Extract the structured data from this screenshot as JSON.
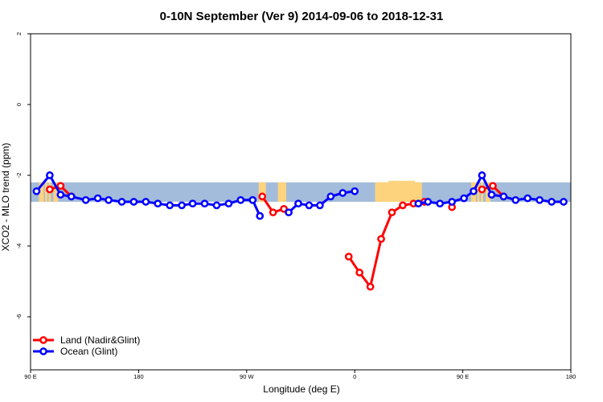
{
  "chart_data": {
    "type": "line",
    "title": "0-10N September (Ver 9)   2014-09-06 to 2018-12-31",
    "xlabel": "Longitude (deg E)",
    "ylabel": "XCO2 - MLO trend (ppm)",
    "xlim": [
      90,
      540
    ],
    "ylim": [
      -7.5,
      2.0
    ],
    "x_ticks": [
      {
        "value": 90,
        "label": "90 E"
      },
      {
        "value": 180,
        "label": "180"
      },
      {
        "value": 270,
        "label": "90 W"
      },
      {
        "value": 360,
        "label": "0"
      },
      {
        "value": 450,
        "label": "90 E"
      },
      {
        "value": 540,
        "label": "180"
      }
    ],
    "y_ticks": [
      {
        "value": 2,
        "label": "2"
      },
      {
        "value": 0,
        "label": "0"
      },
      {
        "value": -2,
        "label": "-2"
      },
      {
        "value": -4,
        "label": "-4"
      },
      {
        "value": -6,
        "label": "-6"
      }
    ],
    "background_map": {
      "lat_band_y": [
        -2.2,
        -2.75
      ],
      "ocean_color": "#a3bcdb",
      "land_color": "#fdd37d",
      "land_ranges": [
        [
          97,
          101
        ],
        [
          102,
          104
        ],
        [
          105,
          107
        ],
        [
          109,
          111
        ],
        [
          111,
          113
        ],
        [
          280,
          286
        ],
        [
          296,
          303
        ],
        [
          377,
          416
        ],
        [
          457,
          461
        ],
        [
          462,
          464
        ],
        [
          465,
          467
        ],
        [
          469,
          471
        ],
        [
          471,
          473
        ]
      ]
    },
    "legend_position": "bottom-left",
    "series": [
      {
        "name": "Land (Nadir&Glint)",
        "color": "#ff0000",
        "segments": [
          {
            "x": [
              106,
              115,
              124
            ],
            "y": [
              -2.4,
              -2.3,
              -2.6
            ]
          },
          {
            "x": [
              283,
              292,
              301
            ],
            "y": [
              -2.6,
              -3.05,
              -2.95
            ]
          },
          {
            "x": [
              355,
              364,
              373,
              382,
              391,
              400,
              409,
              418
            ],
            "y": [
              -4.3,
              -4.75,
              -5.15,
              -3.8,
              -3.05,
              -2.85,
              -2.8,
              -2.75
            ]
          },
          {
            "x": [
              466,
              475,
              484
            ],
            "y": [
              -2.4,
              -2.3,
              -2.6
            ]
          },
          {
            "x": [
              441
            ],
            "y": [
              -2.9
            ]
          }
        ]
      },
      {
        "name": "Ocean (Glint)",
        "color": "#0000ff",
        "segments": [
          {
            "x": [
              95,
              106,
              115,
              124,
              136,
              146,
              155,
              166,
              176,
              186,
              196,
              206,
              216,
              225,
              235,
              245,
              255,
              265,
              275
            ],
            "y": [
              -2.45,
              -2.0,
              -2.55,
              -2.6,
              -2.7,
              -2.65,
              -2.7,
              -2.75,
              -2.75,
              -2.75,
              -2.8,
              -2.85,
              -2.85,
              -2.8,
              -2.8,
              -2.85,
              -2.8,
              -2.7,
              -2.7
            ]
          },
          {
            "x": [
              275,
              281
            ],
            "y": [
              -2.7,
              -3.15
            ]
          },
          {
            "x": [
              305,
              313,
              322,
              331,
              340,
              350,
              360
            ],
            "y": [
              -3.05,
              -2.8,
              -2.85,
              -2.85,
              -2.6,
              -2.5,
              -2.45
            ]
          },
          {
            "x": [
              413,
              421,
              431,
              441,
              451,
              459,
              466,
              474,
              484,
              494,
              504,
              514,
              524,
              534
            ],
            "y": [
              -2.8,
              -2.75,
              -2.8,
              -2.75,
              -2.65,
              -2.45,
              -2.0,
              -2.55,
              -2.6,
              -2.7,
              -2.65,
              -2.7,
              -2.75,
              -2.75
            ]
          }
        ]
      }
    ]
  }
}
